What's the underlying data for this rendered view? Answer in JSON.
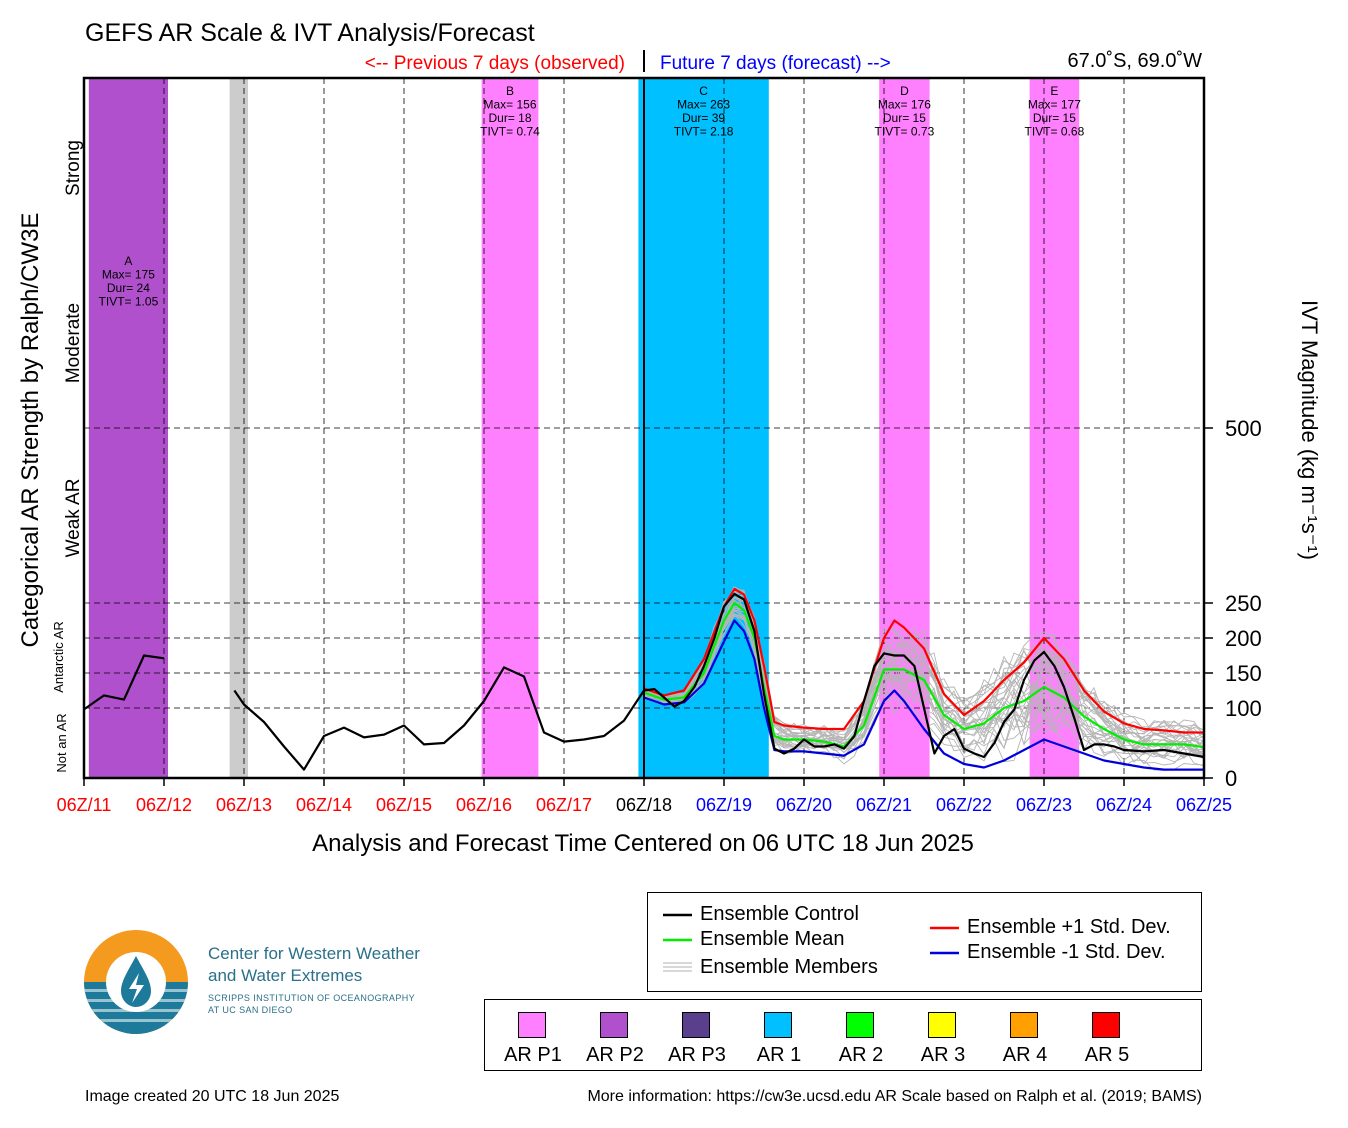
{
  "chart_data": {
    "type": "line",
    "title": "GEFS AR Scale & IVT Analysis/Forecast",
    "previous_label": "<-- Previous 7 days (observed)",
    "future_label": "Future 7 days (forecast) -->",
    "location": "67.0˚S, 69.0˚W",
    "xlabel": "Analysis and Forecast Time Centered on 06 UTC 18 Jun 2025",
    "ylabel_left": "Categorical AR Strength by Ralph/CW3E",
    "ylabel_right": "IVT Magnitude (kg m⁻¹s⁻¹)",
    "category_labels": [
      "Strong",
      "Moderate",
      "Weak AR",
      "Antarctic AR",
      "Not an AR"
    ],
    "x_tick_labels": [
      "06Z/11",
      "06Z/12",
      "06Z/13",
      "06Z/14",
      "06Z/15",
      "06Z/16",
      "06Z/17",
      "06Z/18",
      "06Z/19",
      "06Z/20",
      "06Z/21",
      "06Z/22",
      "06Z/23",
      "06Z/24",
      "06Z/25"
    ],
    "x_tick_colors": [
      "#ff0000",
      "#ff0000",
      "#ff0000",
      "#ff0000",
      "#ff0000",
      "#ff0000",
      "#ff0000",
      "#000000",
      "#0000ff",
      "#0000ff",
      "#0000ff",
      "#0000ff",
      "#0000ff",
      "#0000ff",
      "#0000ff"
    ],
    "y_ticks": [
      0,
      100,
      150,
      200,
      250,
      500
    ],
    "xlim_days": [
      0,
      14
    ],
    "analysis_time_day": 7,
    "ar_events": [
      {
        "label": "A",
        "max": "175",
        "dur": "24",
        "tivt": "1.05",
        "category": "AR P2",
        "start": 0.06,
        "end": 1.05
      },
      {
        "label": "B",
        "max": "156",
        "dur": "18",
        "tivt": "0.74",
        "category": "AR P1",
        "start": 4.97,
        "end": 5.68
      },
      {
        "label": "C",
        "max": "263",
        "dur": "39",
        "tivt": "2.18",
        "category": "AR 1",
        "start": 6.93,
        "end": 8.56
      },
      {
        "label": "D",
        "max": "176",
        "dur": "15",
        "tivt": "0.73",
        "category": "AR P1",
        "start": 9.94,
        "end": 10.57
      },
      {
        "label": "E",
        "max": "177",
        "dur": "15",
        "tivt": "0.68",
        "category": "AR P1",
        "start": 11.82,
        "end": 12.44
      }
    ],
    "missing_period": {
      "start": 1.82,
      "end": 2.05
    },
    "series": [
      {
        "name": "Ensemble Control",
        "color": "#000000",
        "x": [
          0,
          0.25,
          0.5,
          0.75,
          1.0,
          1.25,
          null,
          1.88,
          2.0,
          2.25,
          2.5,
          2.75,
          3.0,
          3.25,
          3.5,
          3.75,
          4.0,
          4.25,
          4.5,
          4.75,
          5.0,
          5.25,
          5.5,
          5.75,
          6.0,
          6.25,
          6.5,
          6.75,
          7.0,
          7.13,
          7.25,
          7.38,
          7.5,
          7.63,
          7.75,
          7.88,
          8.0,
          8.13,
          8.25,
          8.38,
          8.5,
          8.63,
          8.75,
          8.88,
          9.0,
          9.13,
          9.25,
          9.38,
          9.5,
          9.63,
          9.75,
          9.88,
          10.0,
          10.13,
          10.25,
          10.38,
          10.5,
          10.63,
          10.75,
          10.88,
          11.0,
          11.13,
          11.25,
          11.38,
          11.5,
          11.63,
          11.75,
          11.88,
          12.0,
          12.13,
          12.25,
          12.38,
          12.5,
          12.63,
          12.75,
          12.88,
          13.0,
          13.25,
          13.5,
          13.75,
          14.0
        ],
        "values": [
          98,
          118,
          112,
          175,
          171,
          null,
          null,
          125,
          105,
          80,
          45,
          12,
          60,
          72,
          58,
          62,
          75,
          48,
          50,
          75,
          110,
          158,
          145,
          65,
          52,
          55,
          60,
          82,
          125,
          127,
          115,
          102,
          110,
          130,
          160,
          200,
          245,
          263,
          255,
          210,
          120,
          42,
          35,
          42,
          55,
          45,
          45,
          48,
          42,
          60,
          110,
          160,
          178,
          175,
          175,
          160,
          100,
          35,
          60,
          70,
          42,
          35,
          30,
          50,
          80,
          98,
          140,
          168,
          180,
          160,
          130,
          85,
          40,
          48,
          48,
          45,
          40,
          38,
          40,
          35,
          30
        ]
      },
      {
        "name": "Ensemble Mean",
        "color": "#00ee00",
        "x": [
          7.0,
          7.25,
          7.5,
          7.75,
          8.0,
          8.13,
          8.25,
          8.38,
          8.5,
          8.63,
          8.75,
          9.0,
          9.25,
          9.5,
          9.75,
          10.0,
          10.25,
          10.5,
          10.75,
          11.0,
          11.25,
          11.5,
          11.75,
          12.0,
          12.25,
          12.5,
          12.75,
          13.0,
          13.25,
          13.5,
          13.75,
          14.0
        ],
        "values": [
          122,
          112,
          115,
          150,
          225,
          250,
          240,
          200,
          130,
          60,
          55,
          55,
          52,
          45,
          75,
          155,
          155,
          140,
          90,
          70,
          78,
          100,
          110,
          130,
          115,
          88,
          70,
          55,
          48,
          48,
          48,
          44
        ]
      },
      {
        "name": "Ensemble +1 Std. Dev.",
        "color": "#ff0000",
        "x": [
          7.0,
          7.25,
          7.5,
          7.75,
          8.0,
          8.13,
          8.25,
          8.38,
          8.5,
          8.63,
          8.75,
          9.0,
          9.25,
          9.5,
          9.75,
          10.0,
          10.13,
          10.25,
          10.5,
          10.75,
          11.0,
          11.25,
          11.5,
          11.75,
          12.0,
          12.25,
          12.5,
          12.75,
          13.0,
          13.25,
          13.5,
          13.75,
          14.0
        ],
        "values": [
          128,
          118,
          125,
          170,
          245,
          270,
          262,
          225,
          160,
          80,
          75,
          72,
          70,
          70,
          110,
          200,
          225,
          215,
          185,
          120,
          90,
          110,
          140,
          165,
          200,
          170,
          125,
          95,
          78,
          70,
          68,
          65,
          65
        ]
      },
      {
        "name": "Ensemble -1 Std. Dev.",
        "color": "#0000dd",
        "x": [
          7.0,
          7.25,
          7.5,
          7.75,
          8.0,
          8.13,
          8.25,
          8.38,
          8.5,
          8.63,
          8.75,
          9.0,
          9.25,
          9.5,
          9.75,
          10.0,
          10.13,
          10.25,
          10.5,
          10.75,
          11.0,
          11.25,
          11.5,
          11.75,
          12.0,
          12.25,
          12.5,
          12.75,
          13.0,
          13.25,
          13.5,
          13.75,
          14.0
        ],
        "values": [
          115,
          105,
          108,
          135,
          195,
          225,
          210,
          170,
          100,
          40,
          38,
          38,
          35,
          32,
          48,
          110,
          125,
          110,
          70,
          35,
          20,
          15,
          25,
          40,
          55,
          45,
          35,
          25,
          20,
          15,
          12,
          12,
          12
        ]
      }
    ],
    "members_label": "Ensemble Members"
  },
  "legend": {
    "lines": [
      {
        "label": "Ensemble Control",
        "color": "#000000"
      },
      {
        "label": "Ensemble Mean",
        "color": "#00ee00"
      },
      {
        "label": "Ensemble Members",
        "color": "#b0b0b0"
      },
      {
        "label": "Ensemble +1 Std. Dev.",
        "color": "#ff0000"
      },
      {
        "label": "Ensemble -1 Std. Dev.",
        "color": "#0000dd"
      }
    ],
    "categories": [
      {
        "label": "AR P1",
        "color": "#ff80ff"
      },
      {
        "label": "AR P2",
        "color": "#b050cc"
      },
      {
        "label": "AR P3",
        "color": "#5a3f8c"
      },
      {
        "label": "AR 1",
        "color": "#00c0ff"
      },
      {
        "label": "AR 2",
        "color": "#00ff00"
      },
      {
        "label": "AR 3",
        "color": "#ffff00"
      },
      {
        "label": "AR 4",
        "color": "#ffa000"
      },
      {
        "label": "AR 5",
        "color": "#ff0000"
      }
    ]
  },
  "logo": {
    "line1": "Center for Western Weather",
    "line2": "and Water Extremes",
    "line3": "SCRIPPS INSTITUTION OF OCEANOGRAPHY",
    "line4": "AT UC SAN DIEGO"
  },
  "footer": {
    "created": "Image created 20 UTC 18 Jun 2025",
    "info": "More information: https://cw3e.ucsd.edu AR Scale based on Ralph et al. (2019; BAMS)"
  }
}
